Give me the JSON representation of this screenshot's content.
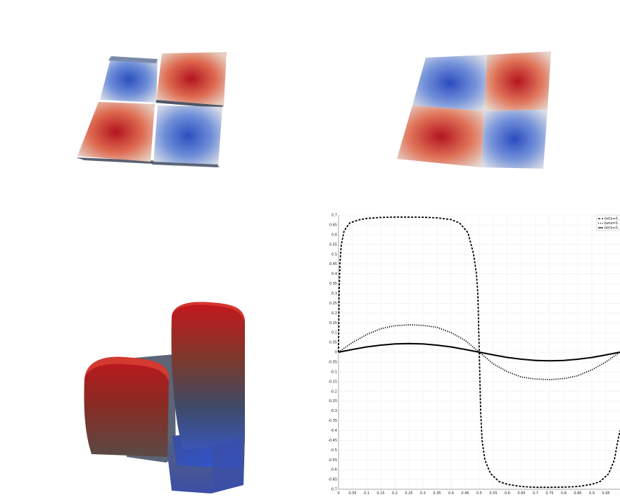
{
  "views": [
    {
      "name": "surface-warped-low"
    },
    {
      "name": "surface-flat"
    },
    {
      "name": "surface-warped-high"
    }
  ],
  "chart_data": {
    "type": "line",
    "xlim": [
      0,
      1
    ],
    "ylim": [
      -0.7,
      0.7
    ],
    "x_ticks": [
      "0",
      "0.05",
      "0.1",
      "0.15",
      "0.2",
      "0.25",
      "0.3",
      "0.35",
      "0.4",
      "0.45",
      "0.5",
      "0.55",
      "0.6",
      "0.65",
      "0.7",
      "0.75",
      "0.8",
      "0.85",
      "0.9",
      "0.95"
    ],
    "y_ticks": [
      "0.7",
      "0.65",
      "0.6",
      "0.55",
      "0.5",
      "0.45",
      "0.4",
      "0.35",
      "0.3",
      "0.25",
      "0.2",
      "0.15",
      "0.1",
      "0.05",
      "0",
      "-0.05",
      "-0.1",
      "-0.15",
      "-0.2",
      "-0.25",
      "-0.3",
      "-0.35",
      "-0.4",
      "-0.45",
      "-0.5",
      "-0.55",
      "-0.6",
      "-0.65",
      "-0.7"
    ],
    "grid": true,
    "legend_position": "top-right",
    "series": [
      {
        "name": "beta=0.",
        "style": "dashed",
        "x": [
          0,
          0.002,
          0.005,
          0.01,
          0.02,
          0.04,
          0.07,
          0.1,
          0.15,
          0.2,
          0.25,
          0.3,
          0.35,
          0.4,
          0.43,
          0.46,
          0.48,
          0.49,
          0.495,
          0.5,
          0.505,
          0.51,
          0.52,
          0.54,
          0.57,
          0.6,
          0.65,
          0.7,
          0.75,
          0.8,
          0.85,
          0.9,
          0.93,
          0.96,
          0.98,
          0.99,
          1.0
        ],
        "y": [
          0,
          0.3,
          0.45,
          0.55,
          0.62,
          0.66,
          0.675,
          0.683,
          0.688,
          0.69,
          0.69,
          0.689,
          0.686,
          0.677,
          0.66,
          0.61,
          0.5,
          0.4,
          0.3,
          0,
          -0.3,
          -0.45,
          -0.55,
          -0.62,
          -0.66,
          -0.675,
          -0.686,
          -0.69,
          -0.69,
          -0.689,
          -0.686,
          -0.675,
          -0.66,
          -0.62,
          -0.55,
          -0.47,
          -0.4
        ]
      },
      {
        "name": "beta=0.",
        "style": "dotted",
        "x": [
          0,
          0.05,
          0.1,
          0.15,
          0.2,
          0.25,
          0.3,
          0.35,
          0.4,
          0.45,
          0.5,
          0.55,
          0.6,
          0.65,
          0.7,
          0.75,
          0.8,
          0.85,
          0.9,
          0.95,
          1.0
        ],
        "y": [
          0,
          0.05,
          0.09,
          0.12,
          0.135,
          0.14,
          0.137,
          0.127,
          0.1,
          0.06,
          0,
          -0.06,
          -0.1,
          -0.127,
          -0.137,
          -0.14,
          -0.135,
          -0.12,
          -0.09,
          -0.05,
          0
        ]
      },
      {
        "name": "beta=0.",
        "style": "solid",
        "x": [
          0,
          0.05,
          0.1,
          0.15,
          0.2,
          0.25,
          0.3,
          0.35,
          0.4,
          0.45,
          0.5,
          0.55,
          0.6,
          0.65,
          0.7,
          0.75,
          0.8,
          0.85,
          0.9,
          0.95,
          1.0
        ],
        "y": [
          0,
          0.014,
          0.027,
          0.036,
          0.042,
          0.044,
          0.042,
          0.036,
          0.027,
          0.014,
          0,
          -0.014,
          -0.027,
          -0.036,
          -0.042,
          -0.044,
          -0.042,
          -0.036,
          -0.027,
          -0.014,
          0
        ]
      }
    ]
  }
}
